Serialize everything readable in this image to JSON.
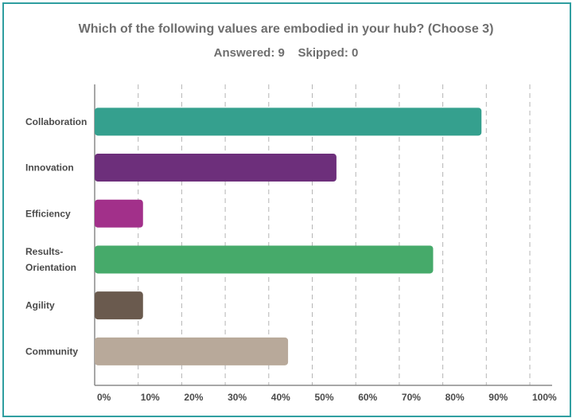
{
  "title": "Which of the following values are embodied in your hub? (Choose 3)",
  "subtitle": "Answered: 9    Skipped: 0",
  "chart_data": {
    "type": "bar",
    "orientation": "horizontal",
    "categories": [
      "Collaboration",
      "Innovation",
      "Efficiency",
      "Results-Orientation",
      "Agility",
      "Community"
    ],
    "category_lines": [
      [
        "Collaboration"
      ],
      [
        "Innovation"
      ],
      [
        "Efficiency"
      ],
      [
        "Results-",
        "Orientation"
      ],
      [
        "Agility"
      ],
      [
        "Community"
      ]
    ],
    "values": [
      88.89,
      55.56,
      11.11,
      77.78,
      11.11,
      44.44
    ],
    "colors": [
      "#35a08e",
      "#6d2f7b",
      "#a2308a",
      "#46aa6a",
      "#6a5a4e",
      "#b8a99a"
    ],
    "xlim": [
      0,
      100
    ],
    "xticks": [
      "0%",
      "10%",
      "20%",
      "30%",
      "40%",
      "50%",
      "60%",
      "70%",
      "80%",
      "90%",
      "100%"
    ],
    "grid": true
  }
}
